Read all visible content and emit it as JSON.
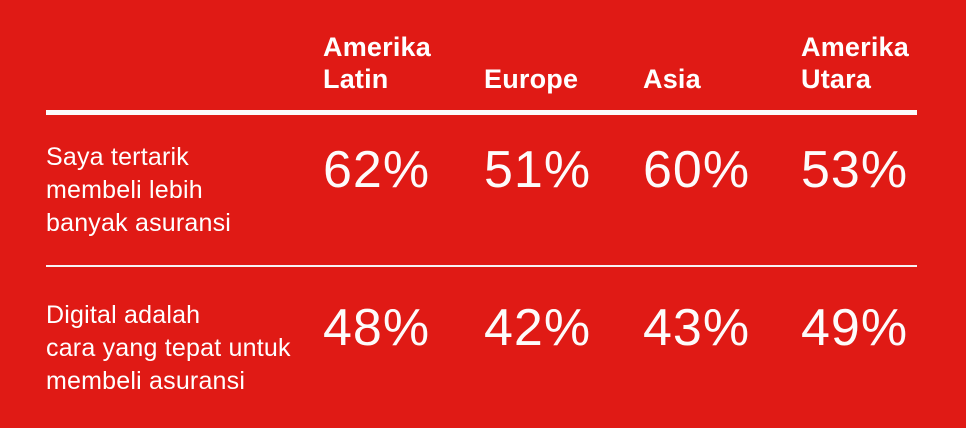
{
  "colors": {
    "background": "#E01A15",
    "text": "#FFFFFF",
    "divider_thick": "#FCFAFA",
    "divider_thin": "#F7F3F3"
  },
  "table": {
    "columns": [
      {
        "lines": [
          "Amerika",
          "Latin"
        ]
      },
      {
        "lines": [
          "Europe"
        ]
      },
      {
        "lines": [
          "Asia"
        ]
      },
      {
        "lines": [
          "Amerika",
          "Utara"
        ]
      }
    ],
    "rows": [
      {
        "label_lines": [
          "Saya tertarik",
          "membeli lebih",
          "banyak asuransi"
        ],
        "values": [
          "62%",
          "51%",
          "60%",
          "53%"
        ]
      },
      {
        "label_lines": [
          "Digital adalah",
          "cara yang tepat untuk",
          "membeli asuransi"
        ],
        "values": [
          "48%",
          "42%",
          "43%",
          "49%"
        ]
      }
    ]
  },
  "chart_data": {
    "type": "table",
    "categories": [
      "Amerika Latin",
      "Europe",
      "Asia",
      "Amerika Utara"
    ],
    "series": [
      {
        "name": "Saya tertarik membeli lebih banyak asuransi",
        "values": [
          62,
          51,
          60,
          53
        ]
      },
      {
        "name": "Digital adalah cara yang tepat untuk membeli asuransi",
        "values": [
          48,
          42,
          43,
          49
        ]
      }
    ],
    "unit": "%"
  }
}
